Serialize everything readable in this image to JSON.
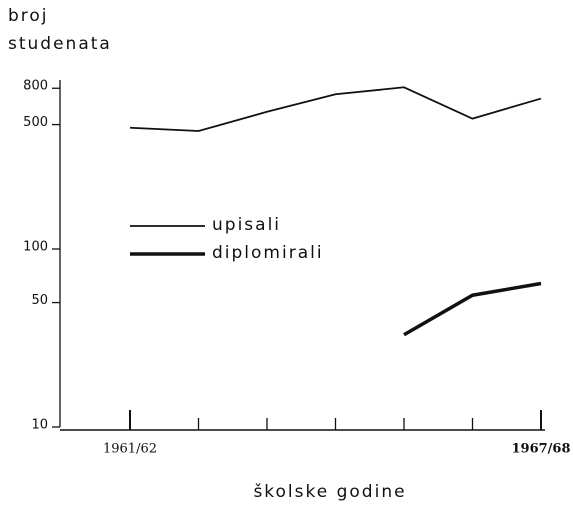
{
  "chart_data": {
    "type": "line",
    "ylabel": [
      "broj",
      "studenata"
    ],
    "xlabel": "školske godine",
    "categories": [
      "1961/62",
      null,
      null,
      null,
      null,
      null,
      "1967/68"
    ],
    "series": [
      {
        "name": "upisali",
        "color": "#111111",
        "width": 1.8,
        "values": [
          480,
          460,
          590,
          740,
          810,
          540,
          700
        ]
      },
      {
        "name": "diplomirali",
        "color": "#111111",
        "width": 3.5,
        "values": [
          null,
          null,
          null,
          null,
          33,
          55,
          64
        ]
      }
    ],
    "ylim": [
      10,
      1000
    ],
    "yticks": [
      10,
      50,
      100,
      500,
      800
    ],
    "log_y": true
  }
}
